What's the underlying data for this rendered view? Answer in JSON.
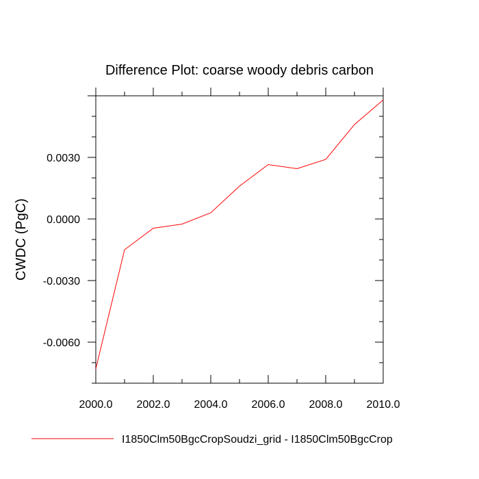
{
  "chart_data": {
    "type": "line",
    "title": "Difference Plot: coarse woody debris carbon",
    "xlabel": "",
    "ylabel": "CWDC  (PgC)",
    "xlim": [
      2000.0,
      2010.0
    ],
    "ylim": [
      -0.008,
      0.006
    ],
    "x_ticks": [
      2000.0,
      2002.0,
      2004.0,
      2006.0,
      2008.0,
      2010.0
    ],
    "x_tick_labels": [
      "2000.0",
      "2002.0",
      "2004.0",
      "2006.0",
      "2008.0",
      "2010.0"
    ],
    "y_ticks": [
      -0.006,
      -0.003,
      0.0,
      0.003
    ],
    "y_tick_labels": [
      "-0.0060",
      "-0.0030",
      "0.0000",
      "0.0030"
    ],
    "grid": false,
    "legend_position": "bottom",
    "series": [
      {
        "name": "I1850Clm50BgcCropSoudzi_grid - I1850Clm50BgcCrop",
        "color": "#ff0000",
        "x": [
          2000,
          2001,
          2002,
          2003,
          2004,
          2005,
          2006,
          2007,
          2008,
          2009,
          2010
        ],
        "values": [
          -0.0073,
          -0.0015,
          -0.00045,
          -0.00025,
          0.0003,
          0.0016,
          0.00265,
          0.00245,
          0.0029,
          0.0046,
          0.0058
        ]
      }
    ]
  }
}
